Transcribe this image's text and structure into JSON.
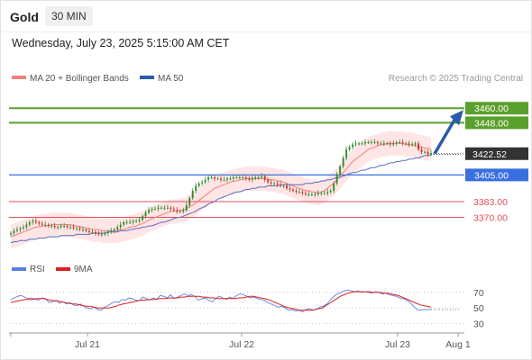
{
  "header": {
    "symbol": "Gold",
    "timeframe": "30 MIN",
    "datetime": "Wednesday, July 23, 2025 5:15:00 AM CET"
  },
  "legend": {
    "ma20_label": "MA 20 + Bollinger Bands",
    "ma50_label": "MA 50",
    "credit": "Research © 2025 Trading Central",
    "rsi_label": "RSI",
    "ma9_label": "9MA"
  },
  "colors": {
    "candle_up": "#2e8b2e",
    "candle_down": "#c0392b",
    "ma20": "#f08080",
    "bollinger_fill": "#ffe0e0",
    "ma50": "#5a6fc0",
    "target": "#5aa02c",
    "pivot": "#3a6fe0",
    "support": "#e0505a",
    "current": "#333333",
    "arrow": "#2b5ba8",
    "rsi": "#5b7fe0",
    "rsi_ma": "#e02020"
  },
  "chart_data": [
    {
      "type": "candlestick",
      "title": "Gold 30 MIN",
      "x_ticks": [
        "Jul 21",
        "Jul 22",
        "Jul 23",
        "Aug 1"
      ],
      "ylim": [
        3340,
        3475
      ],
      "levels": [
        {
          "name": "target_2",
          "value": 3460.0,
          "label": "3460.00",
          "style": "target"
        },
        {
          "name": "target_1",
          "value": 3448.0,
          "label": "3448.00",
          "style": "target"
        },
        {
          "name": "current",
          "value": 3422.52,
          "label": "3422.52",
          "style": "current"
        },
        {
          "name": "pivot",
          "value": 3405.0,
          "label": "3405.00",
          "style": "pivot"
        },
        {
          "name": "support_1",
          "value": 3383.0,
          "label": "3383.00",
          "style": "support"
        },
        {
          "name": "support_2",
          "value": 3370.0,
          "label": "3370.00",
          "style": "support"
        }
      ],
      "close": [
        3357,
        3359,
        3360,
        3361,
        3362,
        3364,
        3366,
        3367,
        3366,
        3365,
        3364,
        3364,
        3363,
        3363,
        3362,
        3362,
        3363,
        3363,
        3362,
        3362,
        3361,
        3361,
        3360,
        3360,
        3359,
        3358,
        3358,
        3357,
        3356,
        3356,
        3357,
        3358,
        3359,
        3360,
        3362,
        3364,
        3366,
        3366,
        3366,
        3367,
        3367,
        3368,
        3371,
        3374,
        3376,
        3377,
        3377,
        3378,
        3378,
        3378,
        3378,
        3377,
        3376,
        3375,
        3375,
        3376,
        3380,
        3386,
        3392,
        3396,
        3398,
        3399,
        3401,
        3403,
        3403,
        3402,
        3402,
        3401,
        3401,
        3402,
        3402,
        3403,
        3403,
        3403,
        3403,
        3402,
        3401,
        3402,
        3403,
        3403,
        3404,
        3401,
        3399,
        3398,
        3398,
        3397,
        3396,
        3396,
        3394,
        3393,
        3392,
        3391,
        3391,
        3390,
        3389,
        3389,
        3389,
        3389,
        3390,
        3390,
        3390,
        3391,
        3392,
        3398,
        3405,
        3412,
        3419,
        3426,
        3428,
        3430,
        3431,
        3431,
        3431,
        3432,
        3432,
        3432,
        3432,
        3431,
        3431,
        3431,
        3431,
        3430,
        3431,
        3432,
        3432,
        3431,
        3431,
        3430,
        3430,
        3431,
        3426,
        3424,
        3424,
        3422,
        3423
      ],
      "ma20": [
        3354,
        3355,
        3356,
        3357,
        3358,
        3359,
        3360,
        3361,
        3362,
        3362,
        3363,
        3363,
        3363,
        3364,
        3364,
        3364,
        3364,
        3364,
        3364,
        3364,
        3363,
        3363,
        3362,
        3362,
        3361,
        3361,
        3360,
        3360,
        3360,
        3359,
        3359,
        3359,
        3359,
        3359,
        3359,
        3360,
        3360,
        3361,
        3362,
        3362,
        3363,
        3364,
        3365,
        3366,
        3368,
        3369,
        3370,
        3371,
        3372,
        3373,
        3374,
        3375,
        3375,
        3375,
        3376,
        3376,
        3377,
        3379,
        3380,
        3382,
        3384,
        3386,
        3388,
        3390,
        3392,
        3394,
        3395,
        3396,
        3397,
        3398,
        3399,
        3400,
        3400,
        3401,
        3401,
        3402,
        3402,
        3402,
        3402,
        3402,
        3402,
        3402,
        3401,
        3401,
        3401,
        3400,
        3400,
        3399,
        3398,
        3397,
        3396,
        3395,
        3394,
        3393,
        3392,
        3392,
        3391,
        3391,
        3390,
        3391,
        3392,
        3394,
        3396,
        3398,
        3401,
        3404,
        3407,
        3410,
        3413,
        3416,
        3418,
        3420,
        3422,
        3424,
        3426,
        3427,
        3428,
        3429,
        3430,
        3430,
        3431,
        3431,
        3431,
        3431,
        3431,
        3431,
        3430,
        3430,
        3430,
        3429,
        3428,
        3428,
        3427,
        3427,
        3426
      ],
      "ma50": [
        3349,
        3350,
        3350,
        3351,
        3351,
        3351,
        3352,
        3352,
        3352,
        3353,
        3353,
        3353,
        3354,
        3354,
        3354,
        3354,
        3355,
        3355,
        3355,
        3355,
        3355,
        3356,
        3356,
        3356,
        3356,
        3356,
        3357,
        3357,
        3357,
        3357,
        3357,
        3358,
        3358,
        3358,
        3358,
        3359,
        3359,
        3359,
        3360,
        3360,
        3361,
        3361,
        3362,
        3362,
        3363,
        3363,
        3364,
        3365,
        3366,
        3366,
        3367,
        3368,
        3369,
        3370,
        3370,
        3371,
        3372,
        3373,
        3374,
        3375,
        3377,
        3378,
        3379,
        3381,
        3382,
        3383,
        3385,
        3386,
        3387,
        3388,
        3389,
        3390,
        3391,
        3391,
        3392,
        3393,
        3393,
        3394,
        3394,
        3395,
        3395,
        3395,
        3396,
        3396,
        3396,
        3396,
        3397,
        3397,
        3397,
        3397,
        3397,
        3397,
        3397,
        3397,
        3398,
        3398,
        3398,
        3399,
        3399,
        3400,
        3400,
        3401,
        3401,
        3402,
        3403,
        3403,
        3404,
        3405,
        3406,
        3407,
        3407,
        3408,
        3409,
        3409,
        3410,
        3411,
        3411,
        3412,
        3413,
        3413,
        3414,
        3415,
        3415,
        3416,
        3416,
        3417,
        3417,
        3418,
        3418,
        3419,
        3419,
        3420,
        3421,
        3421,
        3422
      ],
      "bollinger_width": 10
    },
    {
      "type": "line",
      "title": "RSI",
      "ylim": [
        20,
        85
      ],
      "y_ticks": [
        70,
        50,
        30
      ],
      "series": [
        {
          "name": "RSI",
          "values": [
            61,
            63,
            65,
            66,
            64,
            62,
            63,
            61,
            60,
            63,
            62,
            57,
            58,
            60,
            56,
            58,
            55,
            57,
            54,
            53,
            55,
            52,
            50,
            49,
            51,
            48,
            47,
            51,
            53,
            56,
            58,
            57,
            61,
            60,
            63,
            62,
            60,
            59,
            64,
            62,
            60,
            63,
            61,
            66,
            65,
            63,
            67,
            62,
            64,
            66,
            68,
            66,
            67,
            65,
            60,
            62,
            63,
            60,
            58,
            62,
            65,
            63,
            61,
            64,
            62,
            66,
            68,
            67,
            65,
            63,
            64,
            62,
            61,
            60,
            57,
            55,
            53,
            51,
            52,
            50,
            47,
            48,
            46,
            47,
            45,
            48,
            49,
            47,
            48,
            51,
            52,
            55,
            60,
            65,
            68,
            70,
            72,
            73,
            72,
            71,
            72,
            70,
            71,
            70,
            69,
            71,
            70,
            68,
            69,
            67,
            66,
            65,
            63,
            62,
            60,
            57,
            52,
            48,
            47,
            48,
            48,
            48
          ]
        },
        {
          "name": "9MA",
          "values": [
            57,
            58,
            59,
            60,
            61,
            61,
            61,
            62,
            62,
            62,
            61,
            60,
            59,
            59,
            58,
            57,
            56,
            55,
            55,
            54,
            53,
            52,
            52,
            51,
            50,
            50,
            50,
            50,
            51,
            52,
            54,
            55,
            56,
            57,
            58,
            59,
            60,
            60,
            61,
            61,
            61,
            62,
            62,
            62,
            63,
            63,
            63,
            64,
            64,
            65,
            65,
            65,
            65,
            64,
            64,
            63,
            63,
            62,
            62,
            62,
            62,
            62,
            62,
            63,
            63,
            64,
            65,
            65,
            64,
            63,
            62,
            61,
            59,
            57,
            55,
            53,
            51,
            50,
            49,
            48,
            47,
            47,
            47,
            47,
            48,
            49,
            50,
            53,
            56,
            59,
            62,
            65,
            67,
            69,
            70,
            71,
            71,
            71,
            71,
            71,
            70,
            70,
            70,
            69,
            69,
            68,
            67,
            66,
            64,
            62,
            60,
            58,
            56,
            54,
            53,
            52,
            51
          ]
        }
      ]
    }
  ]
}
